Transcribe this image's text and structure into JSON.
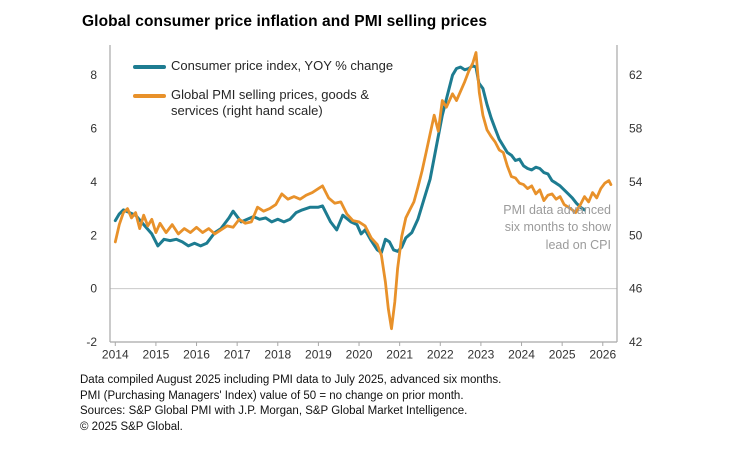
{
  "header": {
    "title": "Global consumer price inflation and PMI selling prices"
  },
  "legend": {
    "items": [
      {
        "label": "Consumer price index, YOY % change",
        "color": "#1d7c91"
      },
      {
        "label": "Global PMI selling prices, goods &\nservices (right hand scale)",
        "color": "#e8912a"
      }
    ]
  },
  "annotation": {
    "text": "PMI data advanced\nsix months to show\nlead on CPI",
    "color": "#9b9b9b"
  },
  "footnotes": {
    "line1": "Data compiled August 2025 including PMI data to July 2025, advanced six months.",
    "line2": "PMI (Purchasing Managers' Index) value of 50 = no change on prior month.",
    "line3": "Sources: S&P Global PMI with J.P. Morgan, S&P Global Market Intelligence.",
    "line4": "© 2025 S&P Global."
  },
  "chart_data": {
    "type": "line",
    "title": "Global consumer price inflation and PMI selling prices",
    "x_range": [
      2013.87,
      2026.35
    ],
    "x_ticks": [
      2014,
      2015,
      2016,
      2017,
      2018,
      2019,
      2020,
      2021,
      2022,
      2023,
      2024,
      2025,
      2026
    ],
    "y_left": {
      "ticks": [
        8,
        6,
        4,
        2,
        0,
        -2
      ],
      "range": [
        -2,
        9.13
      ]
    },
    "y_right": {
      "ticks": [
        62,
        58,
        54,
        50,
        46,
        42
      ],
      "range": [
        42,
        64.26
      ]
    },
    "grid": "zero-line-only",
    "legend_position": "top-left-inside",
    "axis_color": "#a8a8a8",
    "tick_label_color": "#333333",
    "series": [
      {
        "name": "Consumer price index, YOY % change",
        "axis": "left",
        "color": "#1d7c91",
        "stroke_width": 3,
        "points": [
          [
            2014.0,
            2.55
          ],
          [
            2014.1,
            2.8
          ],
          [
            2014.2,
            2.95
          ],
          [
            2014.35,
            2.85
          ],
          [
            2014.5,
            2.75
          ],
          [
            2014.7,
            2.4
          ],
          [
            2014.9,
            2.05
          ],
          [
            2015.05,
            1.6
          ],
          [
            2015.2,
            1.85
          ],
          [
            2015.35,
            1.8
          ],
          [
            2015.5,
            1.85
          ],
          [
            2015.65,
            1.75
          ],
          [
            2015.8,
            1.6
          ],
          [
            2015.95,
            1.7
          ],
          [
            2016.1,
            1.6
          ],
          [
            2016.25,
            1.7
          ],
          [
            2016.45,
            2.1
          ],
          [
            2016.6,
            2.25
          ],
          [
            2016.8,
            2.65
          ],
          [
            2016.9,
            2.9
          ],
          [
            2017.1,
            2.5
          ],
          [
            2017.25,
            2.6
          ],
          [
            2017.4,
            2.7
          ],
          [
            2017.55,
            2.6
          ],
          [
            2017.7,
            2.65
          ],
          [
            2017.85,
            2.5
          ],
          [
            2018.0,
            2.6
          ],
          [
            2018.15,
            2.5
          ],
          [
            2018.3,
            2.6
          ],
          [
            2018.45,
            2.85
          ],
          [
            2018.6,
            2.95
          ],
          [
            2018.8,
            3.05
          ],
          [
            2019.0,
            3.05
          ],
          [
            2019.1,
            3.1
          ],
          [
            2019.3,
            2.5
          ],
          [
            2019.45,
            2.2
          ],
          [
            2019.6,
            2.75
          ],
          [
            2019.8,
            2.5
          ],
          [
            2019.95,
            2.4
          ],
          [
            2020.05,
            2.05
          ],
          [
            2020.15,
            2.2
          ],
          [
            2020.3,
            1.8
          ],
          [
            2020.45,
            1.45
          ],
          [
            2020.55,
            1.35
          ],
          [
            2020.65,
            1.85
          ],
          [
            2020.75,
            1.75
          ],
          [
            2020.85,
            1.45
          ],
          [
            2020.95,
            1.4
          ],
          [
            2021.05,
            1.55
          ],
          [
            2021.15,
            1.9
          ],
          [
            2021.3,
            2.1
          ],
          [
            2021.45,
            2.6
          ],
          [
            2021.6,
            3.35
          ],
          [
            2021.75,
            4.1
          ],
          [
            2021.9,
            5.3
          ],
          [
            2022.05,
            6.5
          ],
          [
            2022.2,
            7.4
          ],
          [
            2022.3,
            8.0
          ],
          [
            2022.4,
            8.25
          ],
          [
            2022.5,
            8.3
          ],
          [
            2022.6,
            8.2
          ],
          [
            2022.7,
            8.25
          ],
          [
            2022.8,
            8.35
          ],
          [
            2022.88,
            8.3
          ],
          [
            2022.95,
            7.7
          ],
          [
            2023.05,
            7.5
          ],
          [
            2023.15,
            6.9
          ],
          [
            2023.25,
            6.4
          ],
          [
            2023.35,
            6.0
          ],
          [
            2023.45,
            5.6
          ],
          [
            2023.55,
            5.35
          ],
          [
            2023.65,
            5.1
          ],
          [
            2023.75,
            5.0
          ],
          [
            2023.85,
            4.8
          ],
          [
            2023.95,
            4.85
          ],
          [
            2024.05,
            4.6
          ],
          [
            2024.15,
            4.5
          ],
          [
            2024.25,
            4.45
          ],
          [
            2024.35,
            4.55
          ],
          [
            2024.45,
            4.5
          ],
          [
            2024.55,
            4.35
          ],
          [
            2024.65,
            4.3
          ],
          [
            2024.75,
            4.05
          ],
          [
            2024.85,
            3.95
          ],
          [
            2024.95,
            3.85
          ],
          [
            2025.05,
            3.7
          ],
          [
            2025.15,
            3.55
          ],
          [
            2025.25,
            3.4
          ],
          [
            2025.35,
            3.2
          ],
          [
            2025.45,
            3.05
          ],
          [
            2025.55,
            2.95
          ]
        ]
      },
      {
        "name": "Global PMI selling prices, goods & services (right hand scale)",
        "axis": "right",
        "color": "#e8912a",
        "stroke_width": 2.8,
        "points": [
          [
            2014.0,
            49.5
          ],
          [
            2014.1,
            50.8
          ],
          [
            2014.2,
            51.7
          ],
          [
            2014.3,
            52.0
          ],
          [
            2014.4,
            51.3
          ],
          [
            2014.5,
            51.7
          ],
          [
            2014.6,
            50.5
          ],
          [
            2014.7,
            51.5
          ],
          [
            2014.8,
            50.7
          ],
          [
            2014.9,
            51.2
          ],
          [
            2015.0,
            50.2
          ],
          [
            2015.1,
            50.9
          ],
          [
            2015.25,
            50.2
          ],
          [
            2015.4,
            50.8
          ],
          [
            2015.55,
            50.1
          ],
          [
            2015.7,
            50.5
          ],
          [
            2015.85,
            50.2
          ],
          [
            2016.0,
            50.6
          ],
          [
            2016.15,
            50.2
          ],
          [
            2016.3,
            50.5
          ],
          [
            2016.45,
            50.1
          ],
          [
            2016.6,
            50.4
          ],
          [
            2016.75,
            50.7
          ],
          [
            2016.9,
            50.6
          ],
          [
            2017.05,
            51.2
          ],
          [
            2017.2,
            50.9
          ],
          [
            2017.35,
            51.0
          ],
          [
            2017.5,
            52.1
          ],
          [
            2017.65,
            51.8
          ],
          [
            2017.8,
            52.0
          ],
          [
            2017.95,
            52.3
          ],
          [
            2018.1,
            53.1
          ],
          [
            2018.25,
            52.7
          ],
          [
            2018.4,
            52.9
          ],
          [
            2018.55,
            52.7
          ],
          [
            2018.7,
            53.0
          ],
          [
            2018.85,
            53.2
          ],
          [
            2019.0,
            53.5
          ],
          [
            2019.1,
            53.7
          ],
          [
            2019.25,
            52.8
          ],
          [
            2019.4,
            52.4
          ],
          [
            2019.55,
            52.5
          ],
          [
            2019.7,
            51.6
          ],
          [
            2019.85,
            51.1
          ],
          [
            2020.0,
            51.0
          ],
          [
            2020.15,
            50.7
          ],
          [
            2020.3,
            49.8
          ],
          [
            2020.45,
            49.3
          ],
          [
            2020.55,
            48.5
          ],
          [
            2020.65,
            46.5
          ],
          [
            2020.72,
            44.5
          ],
          [
            2020.8,
            43.0
          ],
          [
            2020.88,
            45.0
          ],
          [
            2020.95,
            47.5
          ],
          [
            2021.05,
            49.9
          ],
          [
            2021.15,
            51.3
          ],
          [
            2021.25,
            51.9
          ],
          [
            2021.35,
            52.5
          ],
          [
            2021.45,
            53.6
          ],
          [
            2021.55,
            54.8
          ],
          [
            2021.65,
            56.2
          ],
          [
            2021.75,
            57.6
          ],
          [
            2021.85,
            59.0
          ],
          [
            2021.95,
            57.8
          ],
          [
            2022.05,
            60.1
          ],
          [
            2022.15,
            59.6
          ],
          [
            2022.3,
            60.6
          ],
          [
            2022.4,
            60.1
          ],
          [
            2022.5,
            60.8
          ],
          [
            2022.6,
            61.5
          ],
          [
            2022.7,
            62.3
          ],
          [
            2022.8,
            62.9
          ],
          [
            2022.88,
            63.7
          ],
          [
            2022.96,
            60.7
          ],
          [
            2023.05,
            59.0
          ],
          [
            2023.15,
            57.9
          ],
          [
            2023.25,
            57.4
          ],
          [
            2023.35,
            57.0
          ],
          [
            2023.45,
            56.4
          ],
          [
            2023.55,
            56.2
          ],
          [
            2023.65,
            55.2
          ],
          [
            2023.75,
            54.4
          ],
          [
            2023.85,
            54.3
          ],
          [
            2023.95,
            53.9
          ],
          [
            2024.05,
            53.8
          ],
          [
            2024.15,
            53.5
          ],
          [
            2024.25,
            53.7
          ],
          [
            2024.35,
            53.1
          ],
          [
            2024.45,
            53.4
          ],
          [
            2024.55,
            52.6
          ],
          [
            2024.65,
            53.0
          ],
          [
            2024.75,
            53.1
          ],
          [
            2024.85,
            52.7
          ],
          [
            2024.95,
            52.9
          ],
          [
            2025.05,
            52.3
          ],
          [
            2025.15,
            52.1
          ],
          [
            2025.25,
            51.9
          ],
          [
            2025.33,
            51.7
          ],
          [
            2025.45,
            52.3
          ],
          [
            2025.55,
            52.9
          ],
          [
            2025.65,
            52.5
          ],
          [
            2025.75,
            53.2
          ],
          [
            2025.85,
            52.8
          ],
          [
            2025.95,
            53.5
          ],
          [
            2026.05,
            53.9
          ],
          [
            2026.15,
            54.1
          ],
          [
            2026.2,
            53.8
          ]
        ]
      }
    ],
    "annotation": "PMI data advanced six months to show lead on CPI"
  }
}
